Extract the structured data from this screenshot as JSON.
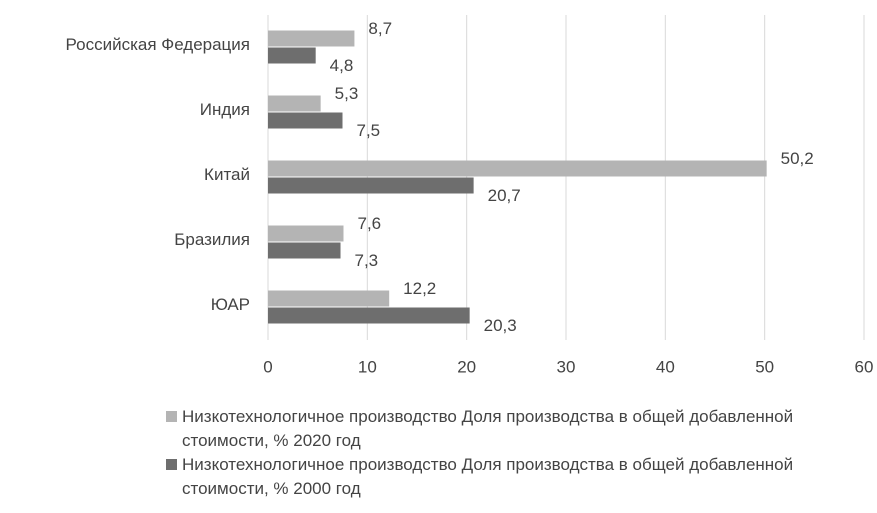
{
  "chart_data": {
    "type": "barh",
    "categories": [
      "Российская Федерация",
      "Индия",
      "Китай",
      "Бразилия",
      "ЮАР"
    ],
    "series": [
      {
        "name": "Низкотехнологичное производство Доля производства в общей добавленной стоимости, %  2020 год",
        "color": "#b4b4b4",
        "values": [
          8.7,
          5.3,
          50.2,
          7.6,
          12.2
        ],
        "value_labels": [
          "8,7",
          "5,3",
          "50,2",
          "7,6",
          "12,2"
        ]
      },
      {
        "name": "Низкотехнологичное производство Доля производства в общей добавленной стоимости, %  2000 год",
        "color": "#6e6e6e",
        "values": [
          4.8,
          7.5,
          20.7,
          7.3,
          20.3
        ],
        "value_labels": [
          "4,8",
          "7,5",
          "20,7",
          "7,3",
          "20,3"
        ]
      }
    ],
    "xlim": [
      0,
      60
    ],
    "xticks": [
      0,
      10,
      20,
      30,
      40,
      50,
      60
    ],
    "grid": true,
    "legend": "bottom"
  }
}
